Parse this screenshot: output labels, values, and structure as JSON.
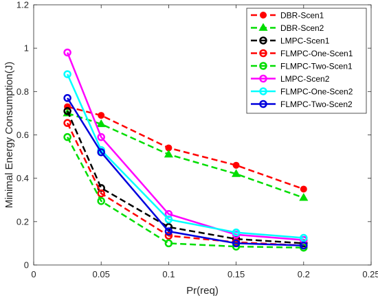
{
  "chart_data": {
    "type": "line",
    "title": "",
    "xlabel": "Pr(req)",
    "ylabel": "Minimal Energy Consumption(J)",
    "xlim": [
      0,
      0.25
    ],
    "ylim": [
      0,
      1.2
    ],
    "xticks": [
      0,
      0.05,
      0.1,
      0.15,
      0.2,
      0.25
    ],
    "xtick_labels": [
      "0",
      "0.05",
      "0.1",
      "0.15",
      "0.2",
      "0.25"
    ],
    "yticks": [
      0,
      0.2,
      0.4,
      0.6,
      0.8,
      1,
      1.2
    ],
    "ytick_labels": [
      "0",
      "0.2",
      "0.4",
      "0.6",
      "0.8",
      "1",
      "1.2"
    ],
    "grid": false,
    "legend_position": "top-right",
    "x": [
      0.025,
      0.05,
      0.1,
      0.15,
      0.2
    ],
    "series": [
      {
        "name": "DBR-Scen1",
        "color": "#ff0000",
        "dash": "dashed",
        "marker": "filled-circle",
        "values": [
          0.73,
          0.69,
          0.54,
          0.46,
          0.35
        ]
      },
      {
        "name": "DBR-Scen2",
        "color": "#00dd00",
        "dash": "dashed",
        "marker": "filled-triangle",
        "values": [
          0.7,
          0.65,
          0.51,
          0.42,
          0.31
        ]
      },
      {
        "name": "LMPC-Scen1",
        "color": "#000000",
        "dash": "dashed",
        "marker": "open-circle",
        "values": [
          0.71,
          0.355,
          0.175,
          0.12,
          0.1
        ]
      },
      {
        "name": "FLMPC-One-Scen1",
        "color": "#ff0000",
        "dash": "dashed",
        "marker": "open-circle",
        "values": [
          0.655,
          0.33,
          0.135,
          0.105,
          0.09
        ]
      },
      {
        "name": "FLMPC-Two-Scen1",
        "color": "#00dd00",
        "dash": "dashed",
        "marker": "open-circle",
        "values": [
          0.59,
          0.295,
          0.1,
          0.085,
          0.08
        ]
      },
      {
        "name": "LMPC-Scen2",
        "color": "#ff00ff",
        "dash": "solid",
        "marker": "open-circle",
        "values": [
          0.98,
          0.59,
          0.235,
          0.14,
          0.115
        ]
      },
      {
        "name": "FLMPC-One-Scen2",
        "color": "#00ffff",
        "dash": "solid",
        "marker": "open-circle",
        "values": [
          0.88,
          0.53,
          0.21,
          0.15,
          0.125
        ]
      },
      {
        "name": "FLMPC-Two-Scen2",
        "color": "#0000dd",
        "dash": "solid",
        "marker": "open-circle",
        "values": [
          0.77,
          0.52,
          0.155,
          0.1,
          0.09
        ]
      }
    ]
  }
}
